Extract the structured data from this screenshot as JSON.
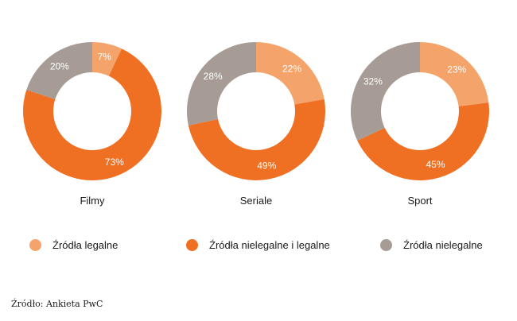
{
  "chart_data": {
    "type": "pie",
    "variant": "donut",
    "series_labels": [
      "Źródła legalne",
      "Źródła nielegalne i legalne",
      "Źródła nielegalne"
    ],
    "colors": {
      "Źródła legalne": "#f4a46a",
      "Źródła nielegalne i legalne": "#ef6f23",
      "Źródła nielegalne": "#a69c95"
    },
    "charts": [
      {
        "title": "Filmy",
        "slices": [
          {
            "label": "Źródła legalne",
            "value": 7
          },
          {
            "label": "Źródła nielegalne i legalne",
            "value": 73
          },
          {
            "label": "Źródła nielegalne",
            "value": 20
          }
        ]
      },
      {
        "title": "Seriale",
        "slices": [
          {
            "label": "Źródła legalne",
            "value": 22
          },
          {
            "label": "Źródła nielegalne i legalne",
            "value": 49
          },
          {
            "label": "Źródła nielegalne",
            "value": 28
          }
        ]
      },
      {
        "title": "Sport",
        "slices": [
          {
            "label": "Źródła legalne",
            "value": 23
          },
          {
            "label": "Źródła nielegalne i legalne",
            "value": 45
          },
          {
            "label": "Źródła nielegalne",
            "value": 32
          }
        ]
      }
    ],
    "legend_position": "bottom"
  },
  "legend": [
    {
      "label": "Źródła legalne",
      "color": "#f4a46a"
    },
    {
      "label": "Źródła nielegalne i legalne",
      "color": "#ef6f23"
    },
    {
      "label": "Źródła nielegalne",
      "color": "#a69c95"
    }
  ],
  "source": "Źródło: Ankieta PwC"
}
